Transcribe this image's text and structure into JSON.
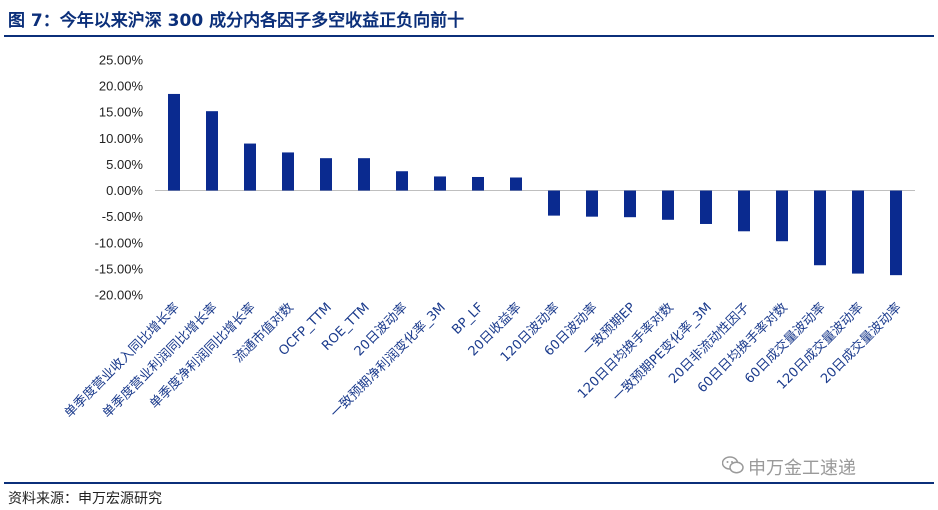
{
  "header": {
    "title": "图 7：今年以来沪深 300 成分内各因子多空收益正负向前十"
  },
  "footer": {
    "source": "资料来源：申万宏源研究",
    "watermark": "申万金工速递",
    "watermark_icon": "wechat-icon"
  },
  "colors": {
    "bar": "#0a2a8f",
    "title": "#0b2f7a",
    "rule": "#0b2f7a",
    "label": "#1a3a8c"
  },
  "chart_data": {
    "type": "bar",
    "title": "",
    "xlabel": "",
    "ylabel": "",
    "ylim": [
      -0.2,
      0.25
    ],
    "yticks": [
      "25.00%",
      "20.00%",
      "15.00%",
      "10.00%",
      "5.00%",
      "0.00%",
      "-5.00%",
      "-10.00%",
      "-15.00%",
      "-20.00%"
    ],
    "ytick_values": [
      0.25,
      0.2,
      0.15,
      0.1,
      0.05,
      0.0,
      -0.05,
      -0.1,
      -0.15,
      -0.2
    ],
    "grid": false,
    "legend": "none",
    "categories": [
      "单季度营业收入同比增长率",
      "单季度营业利润同比增长率",
      "单季度净利润同比增长率",
      "流通市值对数",
      "OCFP_TTM",
      "ROE_TTM",
      "20日波动率",
      "一致预期净利润变化率_3M",
      "BP_LF",
      "20日收益率",
      "120日波动率",
      "60日波动率",
      "一致预期EP",
      "120日日均换手率对数",
      "一致预期PE变化率_3M",
      "20日非流动性因子",
      "60日日均换手率对数",
      "60日成交量波动率",
      "120日成交量波动率",
      "20日成交量波动率"
    ],
    "values": [
      0.185,
      0.152,
      0.09,
      0.073,
      0.062,
      0.062,
      0.037,
      0.027,
      0.026,
      0.025,
      -0.048,
      -0.05,
      -0.051,
      -0.056,
      -0.064,
      -0.078,
      -0.097,
      -0.143,
      -0.159,
      -0.162
    ]
  }
}
